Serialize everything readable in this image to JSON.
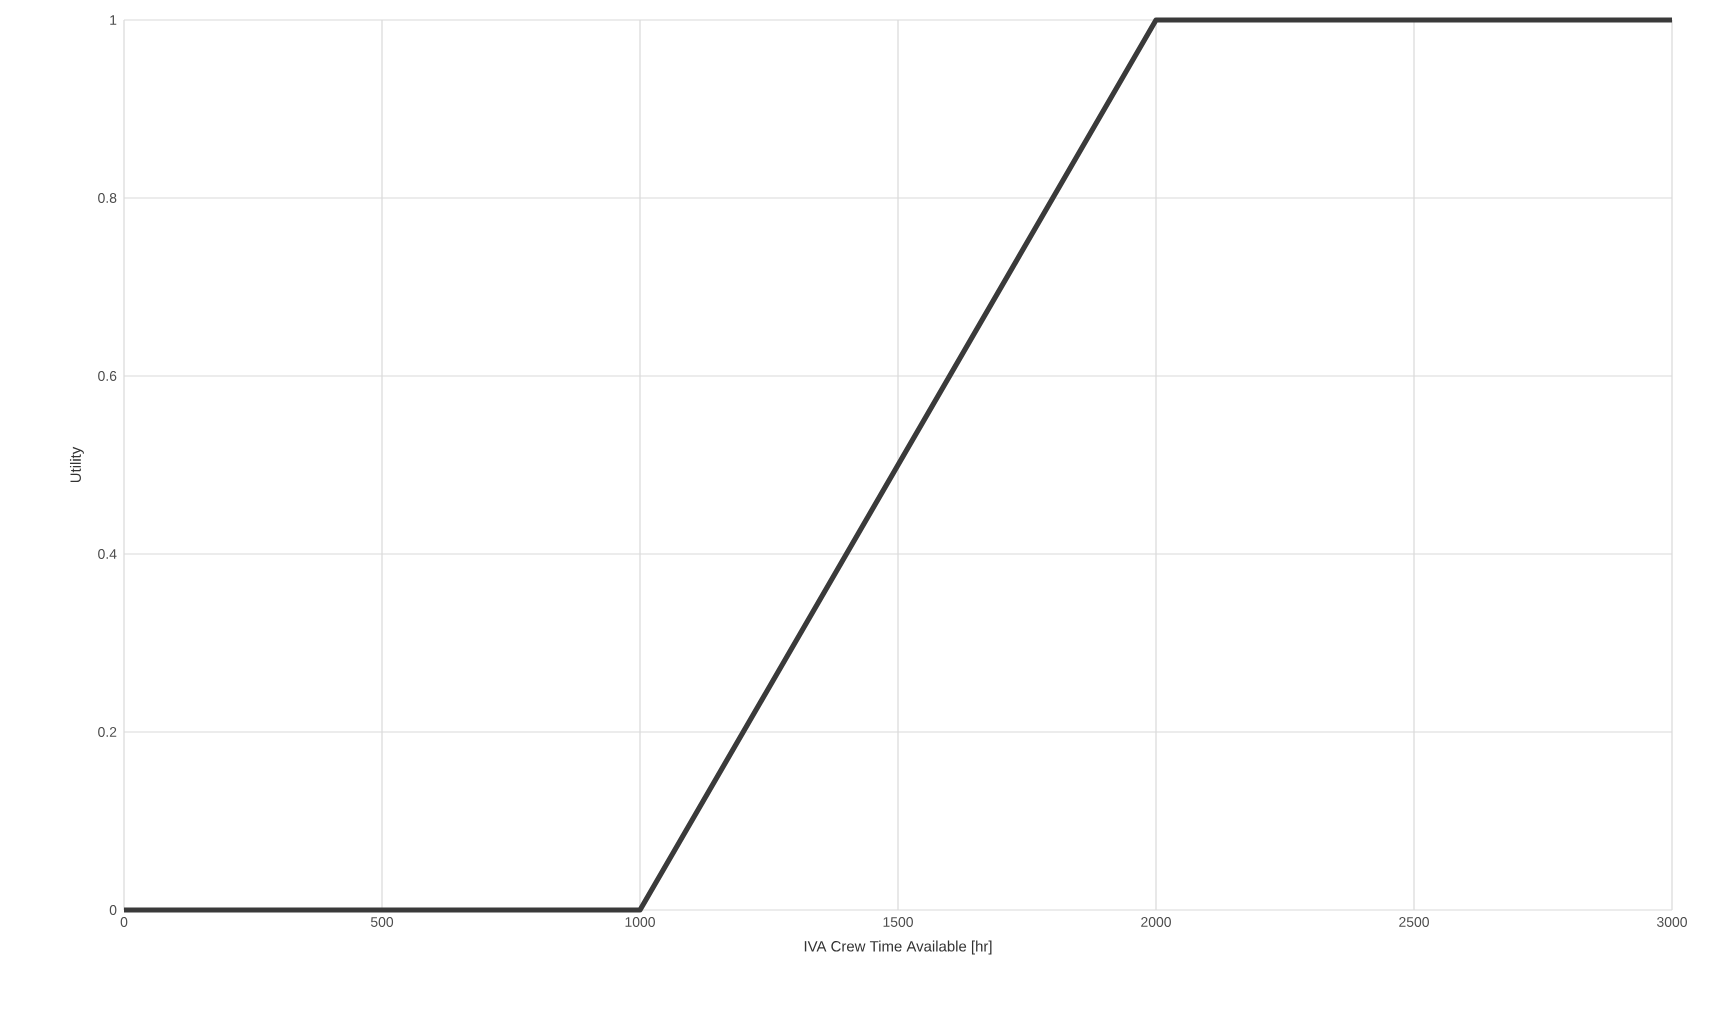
{
  "chart_data": {
    "type": "line",
    "xlabel": "IVA Crew Time Available [hr]",
    "ylabel": "Utility",
    "x": [
      0,
      1000,
      2000,
      3000
    ],
    "series": [
      {
        "color": "#3a3a3a",
        "values": [
          0,
          0,
          1,
          1
        ]
      }
    ],
    "xlim": [
      0,
      3000
    ],
    "ylim": [
      0,
      1
    ],
    "xticks": [
      0,
      500,
      1000,
      1500,
      2000,
      2500,
      3000
    ],
    "yticks": [
      0,
      0.2,
      0.4,
      0.6,
      0.8,
      1
    ],
    "grid": true,
    "marker": "none",
    "line_style": "solid"
  }
}
